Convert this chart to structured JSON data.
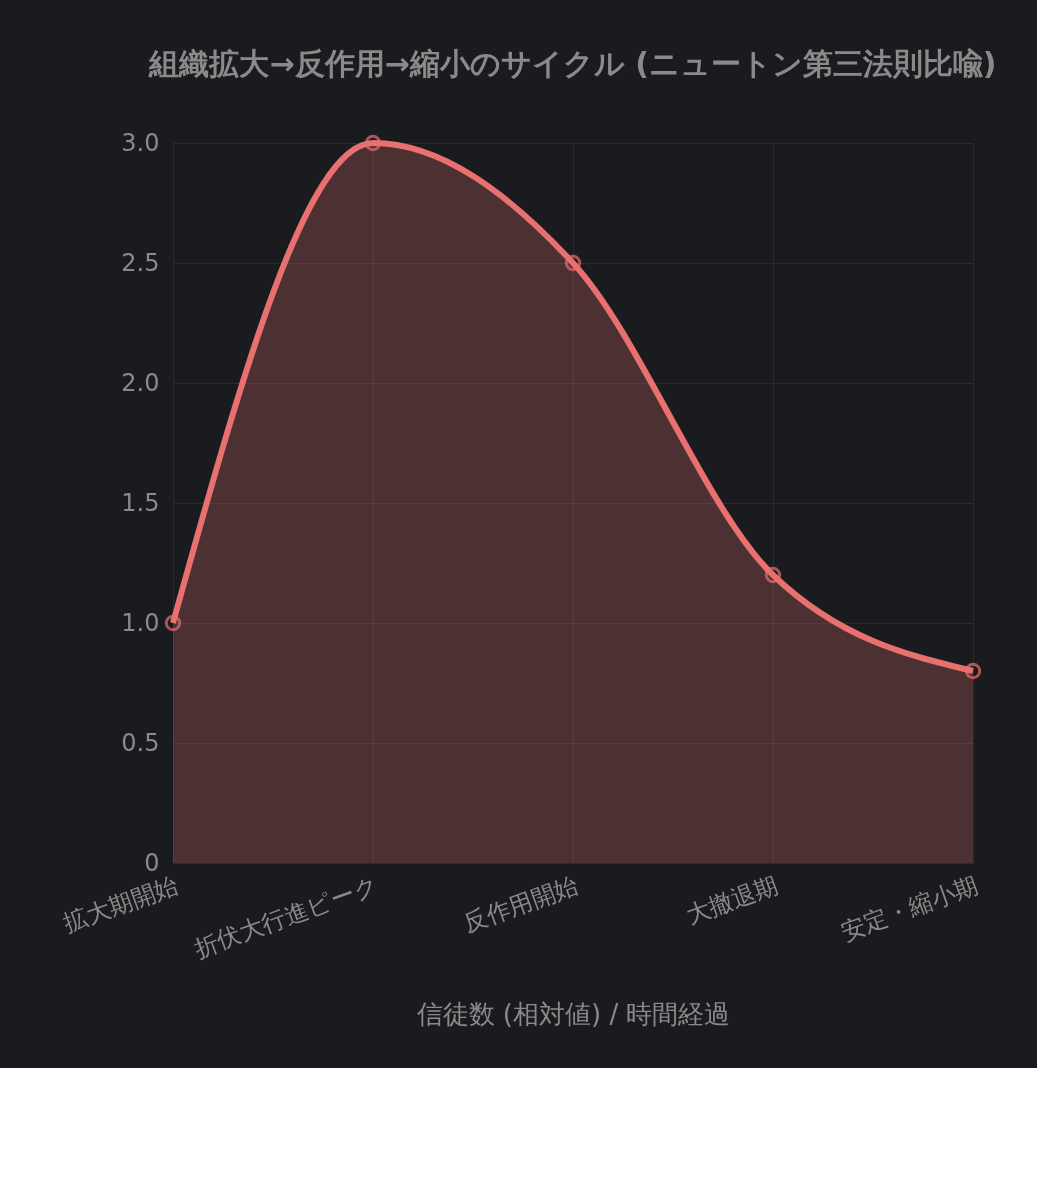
{
  "chart_data": {
    "type": "area",
    "title": "組織拡大→反作用→縮小のサイクル (ニュートン第三法則比喩)",
    "xlabel": "信徒数 (相対値) / 時間経過",
    "categories": [
      "拡大期開始",
      "折伏大行進ピーク",
      "反作用開始",
      "大撤退期",
      "安定・縮小期"
    ],
    "series": [
      {
        "color": "#e8706f",
        "values": [
          1.0,
          3.0,
          2.5,
          1.2,
          0.8
        ]
      }
    ],
    "ylim": [
      0,
      3.0
    ],
    "yticks": [
      0,
      0.5,
      {
        "value": 1.0,
        "label": "1.0"
      },
      1.5,
      {
        "value": 2.0,
        "label": "2.0"
      },
      2.5,
      {
        "value": 3.0,
        "label": "3.0"
      }
    ],
    "grid": true,
    "marker": "circle",
    "line_style": "solid"
  }
}
